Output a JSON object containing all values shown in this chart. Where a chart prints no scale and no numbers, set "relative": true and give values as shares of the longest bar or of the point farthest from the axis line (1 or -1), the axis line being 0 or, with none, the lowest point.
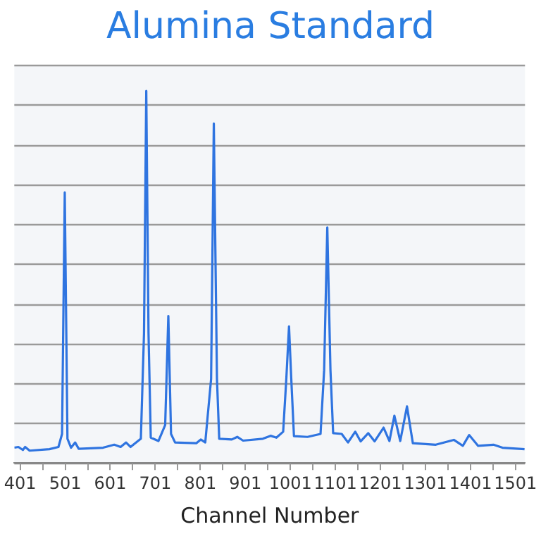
{
  "chart_data": {
    "type": "line",
    "title": "Alumina Standard",
    "xlabel": "Channel Number",
    "relative": true,
    "grid": "y",
    "legend": false,
    "marker": "none",
    "line_style": "solid",
    "xlim": [
      388,
      1522
    ],
    "xticks": [
      401,
      {
        "value": 451,
        "label": null
      },
      501,
      {
        "value": 551,
        "label": null
      },
      601,
      {
        "value": 651,
        "label": null
      },
      701,
      {
        "value": 751,
        "label": null
      },
      801,
      {
        "value": 851,
        "label": null
      },
      901,
      {
        "value": 951,
        "label": null
      },
      1001,
      {
        "value": 1051,
        "label": null
      },
      1101,
      {
        "value": 1151,
        "label": null
      },
      1201,
      {
        "value": 1251,
        "label": null
      },
      1301,
      {
        "value": 1351,
        "label": null
      },
      1401,
      {
        "value": 1451,
        "label": null
      },
      1501
    ],
    "series": [
      {
        "color": "#2f74e0",
        "x": [
          388,
          397,
          407,
          412,
          422,
          466,
          486,
          494,
          500,
          506,
          514,
          523,
          531,
          585,
          610,
          624,
          636,
          646,
          669,
          676,
          681,
          686,
          691,
          708,
          723,
          730,
          736,
          745,
          792,
          802,
          812,
          825,
          831,
          838,
          843,
          871,
          883,
          896,
          940,
          957,
          970,
          985,
          992,
          998,
          1003,
          1009,
          1039,
          1068,
          1076,
          1083,
          1090,
          1096,
          1115,
          1129,
          1145,
          1157,
          1174,
          1188,
          1208,
          1221,
          1232,
          1245,
          1260,
          1273,
          1324,
          1364,
          1384,
          1398,
          1418,
          1452,
          1472,
          1521
        ],
        "values": [
          0.041,
          0.043,
          0.035,
          0.043,
          0.033,
          0.037,
          0.043,
          0.078,
          0.727,
          0.065,
          0.041,
          0.055,
          0.038,
          0.041,
          0.049,
          0.043,
          0.055,
          0.043,
          0.065,
          0.349,
          1.0,
          0.349,
          0.068,
          0.059,
          0.102,
          0.395,
          0.078,
          0.055,
          0.053,
          0.063,
          0.055,
          0.226,
          0.912,
          0.226,
          0.065,
          0.063,
          0.07,
          0.06,
          0.065,
          0.073,
          0.068,
          0.084,
          0.226,
          0.367,
          0.226,
          0.072,
          0.07,
          0.078,
          0.25,
          0.633,
          0.25,
          0.08,
          0.078,
          0.055,
          0.084,
          0.058,
          0.08,
          0.058,
          0.095,
          0.059,
          0.127,
          0.059,
          0.152,
          0.053,
          0.049,
          0.062,
          0.046,
          0.075,
          0.046,
          0.049,
          0.041,
          0.037
        ]
      }
    ]
  }
}
